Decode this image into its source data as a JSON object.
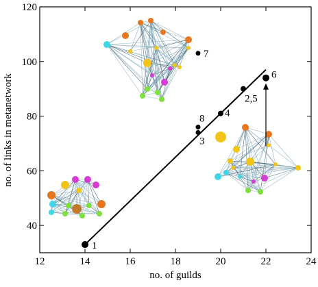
{
  "chart_data": {
    "type": "scatter",
    "x_label": "no. of guilds",
    "y_label": "no. of links in metanetwork",
    "x": [
      14,
      19,
      19,
      19,
      20,
      21,
      22
    ],
    "values": [
      33,
      103,
      76,
      74,
      81,
      90,
      94
    ],
    "point_labels": [
      "1",
      "7",
      "8",
      "3",
      "4",
      "2,5",
      "6"
    ],
    "color": "#000000",
    "fit_line": {
      "x": [
        14,
        22
      ],
      "y": [
        33,
        97
      ]
    },
    "arrow": {
      "x": 22,
      "y": [
        69,
        92
      ]
    },
    "xlim": [
      12,
      24
    ],
    "xticks": [
      12,
      14,
      16,
      18,
      20,
      22,
      24
    ],
    "ylim": [
      30,
      120
    ],
    "yticks": [
      40,
      60,
      80,
      100,
      120
    ]
  }
}
